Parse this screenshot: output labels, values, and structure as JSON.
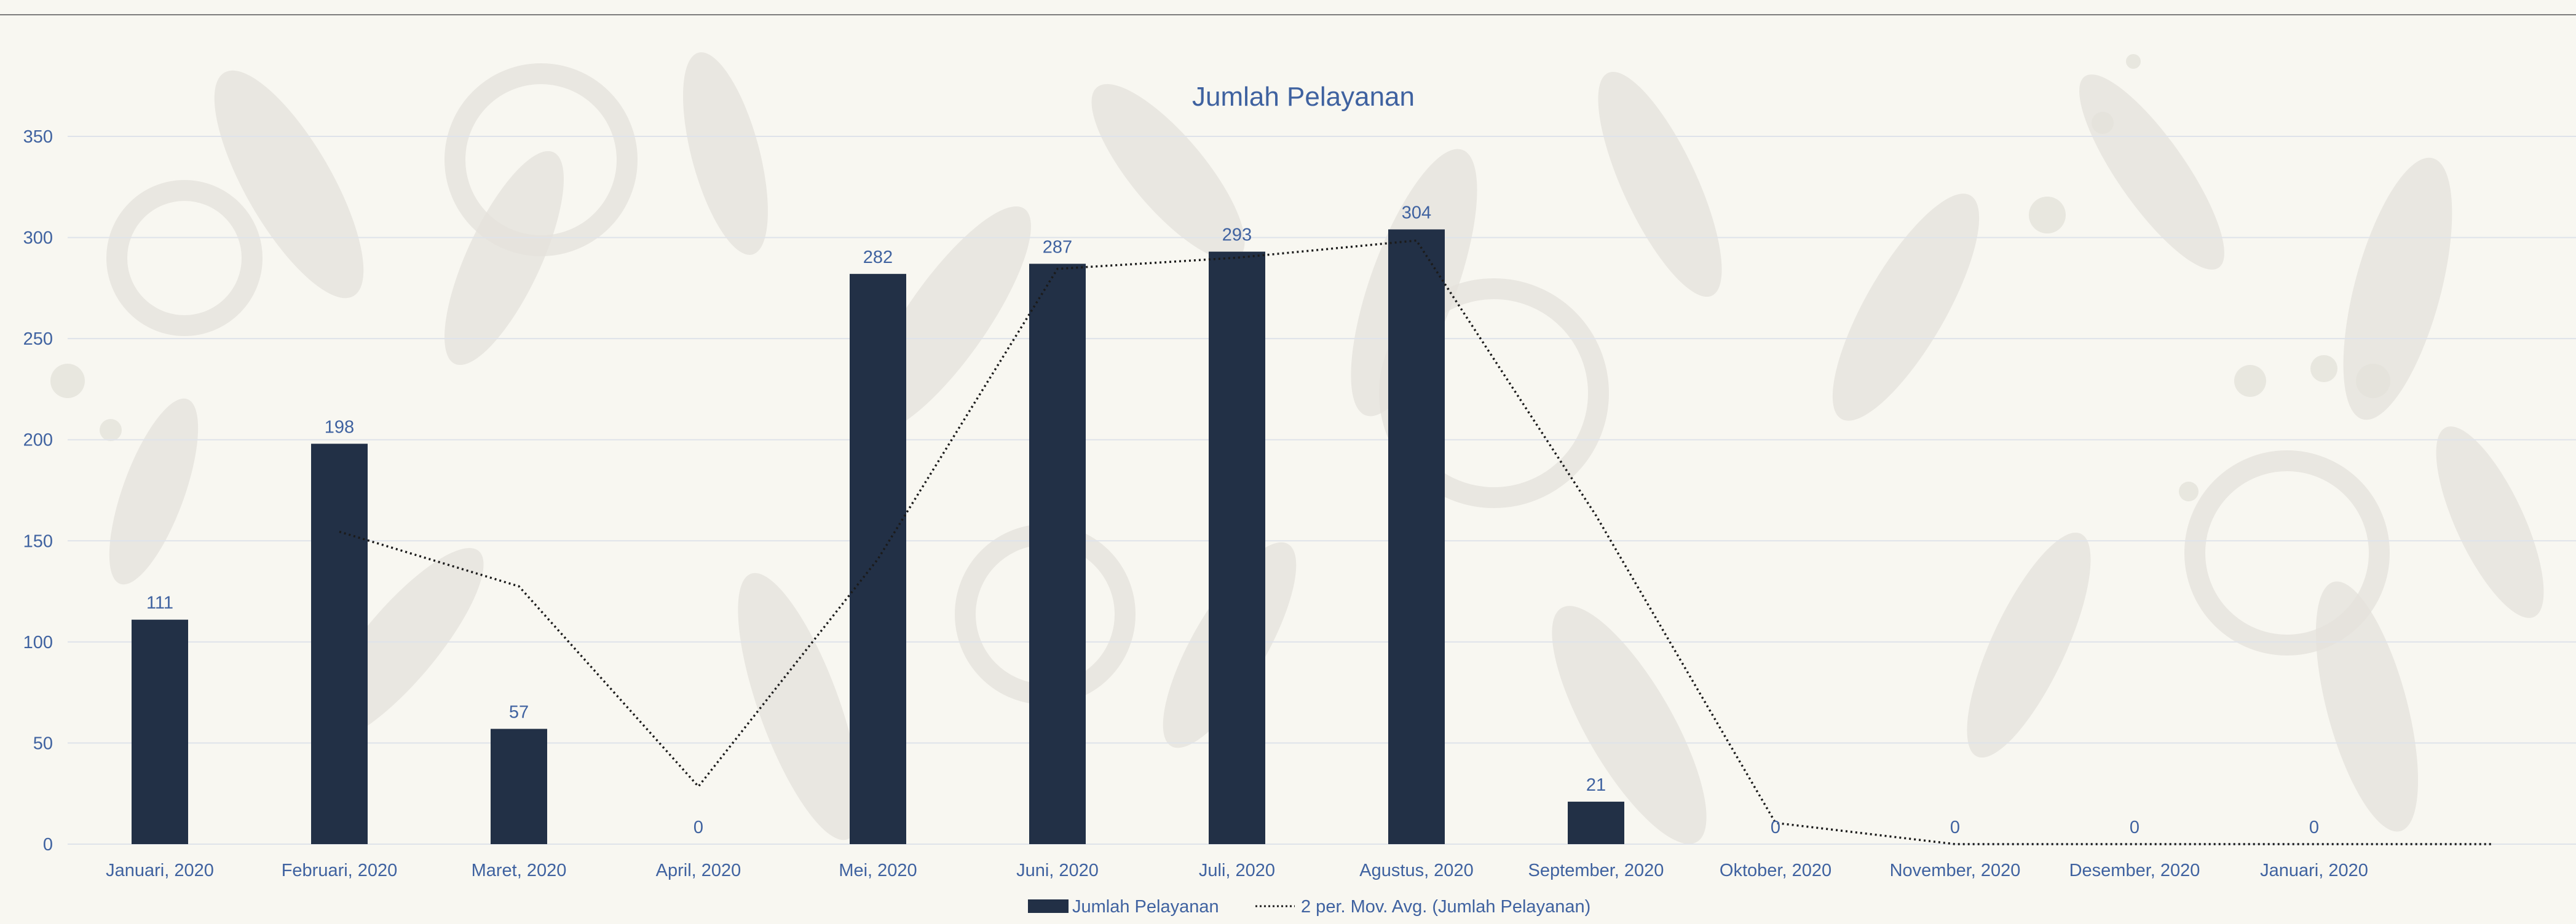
{
  "colors": {
    "background": "#f8f7f1",
    "ornament": "#e4e2db",
    "bar": "#223046",
    "text": "#3f62a0",
    "grid": "#dfe3ea",
    "top_rule": "#7b7b7b",
    "trendline": "#1b1b1b"
  },
  "chart_data": {
    "type": "bar",
    "title": "Jumlah Pelayanan",
    "categories": [
      "Januari, 2020",
      "Februari, 2020",
      "Maret, 2020",
      "April, 2020",
      "Mei, 2020",
      "Juni, 2020",
      "Juli, 2020",
      "Agustus, 2020",
      "September, 2020",
      "Oktober, 2020",
      "November, 2020",
      "Desember, 2020",
      "Januari, 2020"
    ],
    "series": [
      {
        "name": "Jumlah Pelayanan",
        "type": "bar",
        "values": [
          111,
          198,
          57,
          0,
          282,
          287,
          293,
          304,
          21,
          0,
          0,
          0,
          0
        ],
        "data_labels": [
          "111",
          "198",
          "57",
          "0",
          "282",
          "287",
          "293",
          "304",
          "21",
          "0",
          "0",
          "0",
          "0"
        ]
      },
      {
        "name": "2 per. Mov. Avg. (Jumlah Pelayanan)",
        "type": "line",
        "style": "dotted",
        "values": [
          null,
          154.5,
          127.5,
          28.5,
          141,
          284.5,
          290,
          298.5,
          162.5,
          10.5,
          0,
          0,
          0
        ]
      }
    ],
    "y_ticks": [
      "0",
      "50",
      "100",
      "150",
      "200",
      "250",
      "300",
      "350"
    ],
    "ylim": [
      0,
      350
    ],
    "grid": true,
    "legend": "bottom",
    "xlabel": "",
    "ylabel": ""
  }
}
